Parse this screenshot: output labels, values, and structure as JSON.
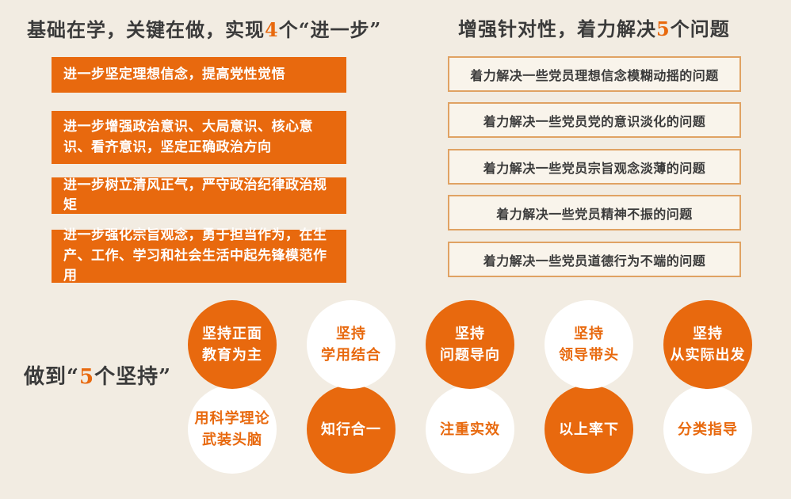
{
  "colors": {
    "background": "#F2ECE2",
    "orange": "#E8690E",
    "box_border": "#E0A263",
    "dark_text": "#3A3A3A",
    "white": "#FFFFFF"
  },
  "left_section": {
    "title": {
      "pre": "基础在学，关键在做，实现",
      "num": "4",
      "post": "个“进一步”"
    },
    "boxes": [
      "进一步坚定理想信念，提高党性觉悟",
      "进一步增强政治意识、大局意识、核心意识、看齐意识，坚定正确政治方向",
      "进一步树立清风正气，严守政治纪律政治规矩",
      "进一步强化宗旨观念，勇于担当作为，在生产、工作、学习和社会生活中起先锋模范作用"
    ]
  },
  "right_section": {
    "title": {
      "pre": "增强针对性，着力解决",
      "num": "5",
      "post": "个问题"
    },
    "boxes": [
      "着力解决一些党员理想信念模糊动摇的问题",
      "着力解决一些党员党的意识淡化的问题",
      "着力解决一些党员宗旨观念淡薄的问题",
      "着力解决一些党员精神不振的问题",
      "着力解决一些党员道德行为不端的问题"
    ]
  },
  "bottom_section": {
    "label": {
      "pre": "做到“",
      "num": "5",
      "post": "个坚持”"
    },
    "circles_top": [
      {
        "lines": [
          "坚持正面",
          "教育为主"
        ],
        "variant": "orange"
      },
      {
        "lines": [
          "坚持",
          "学用结合"
        ],
        "variant": "white"
      },
      {
        "lines": [
          "坚持",
          "问题导向"
        ],
        "variant": "orange"
      },
      {
        "lines": [
          "坚持",
          "领导带头"
        ],
        "variant": "white"
      },
      {
        "lines": [
          "坚持",
          "从实际出发"
        ],
        "variant": "orange"
      }
    ],
    "circles_bottom": [
      {
        "lines": [
          "用科学理论",
          "武装头脑"
        ],
        "variant": "white"
      },
      {
        "lines": [
          "知行合一"
        ],
        "variant": "orange"
      },
      {
        "lines": [
          "注重实效"
        ],
        "variant": "white"
      },
      {
        "lines": [
          "以上率下"
        ],
        "variant": "orange"
      },
      {
        "lines": [
          "分类指导"
        ],
        "variant": "white"
      }
    ]
  }
}
